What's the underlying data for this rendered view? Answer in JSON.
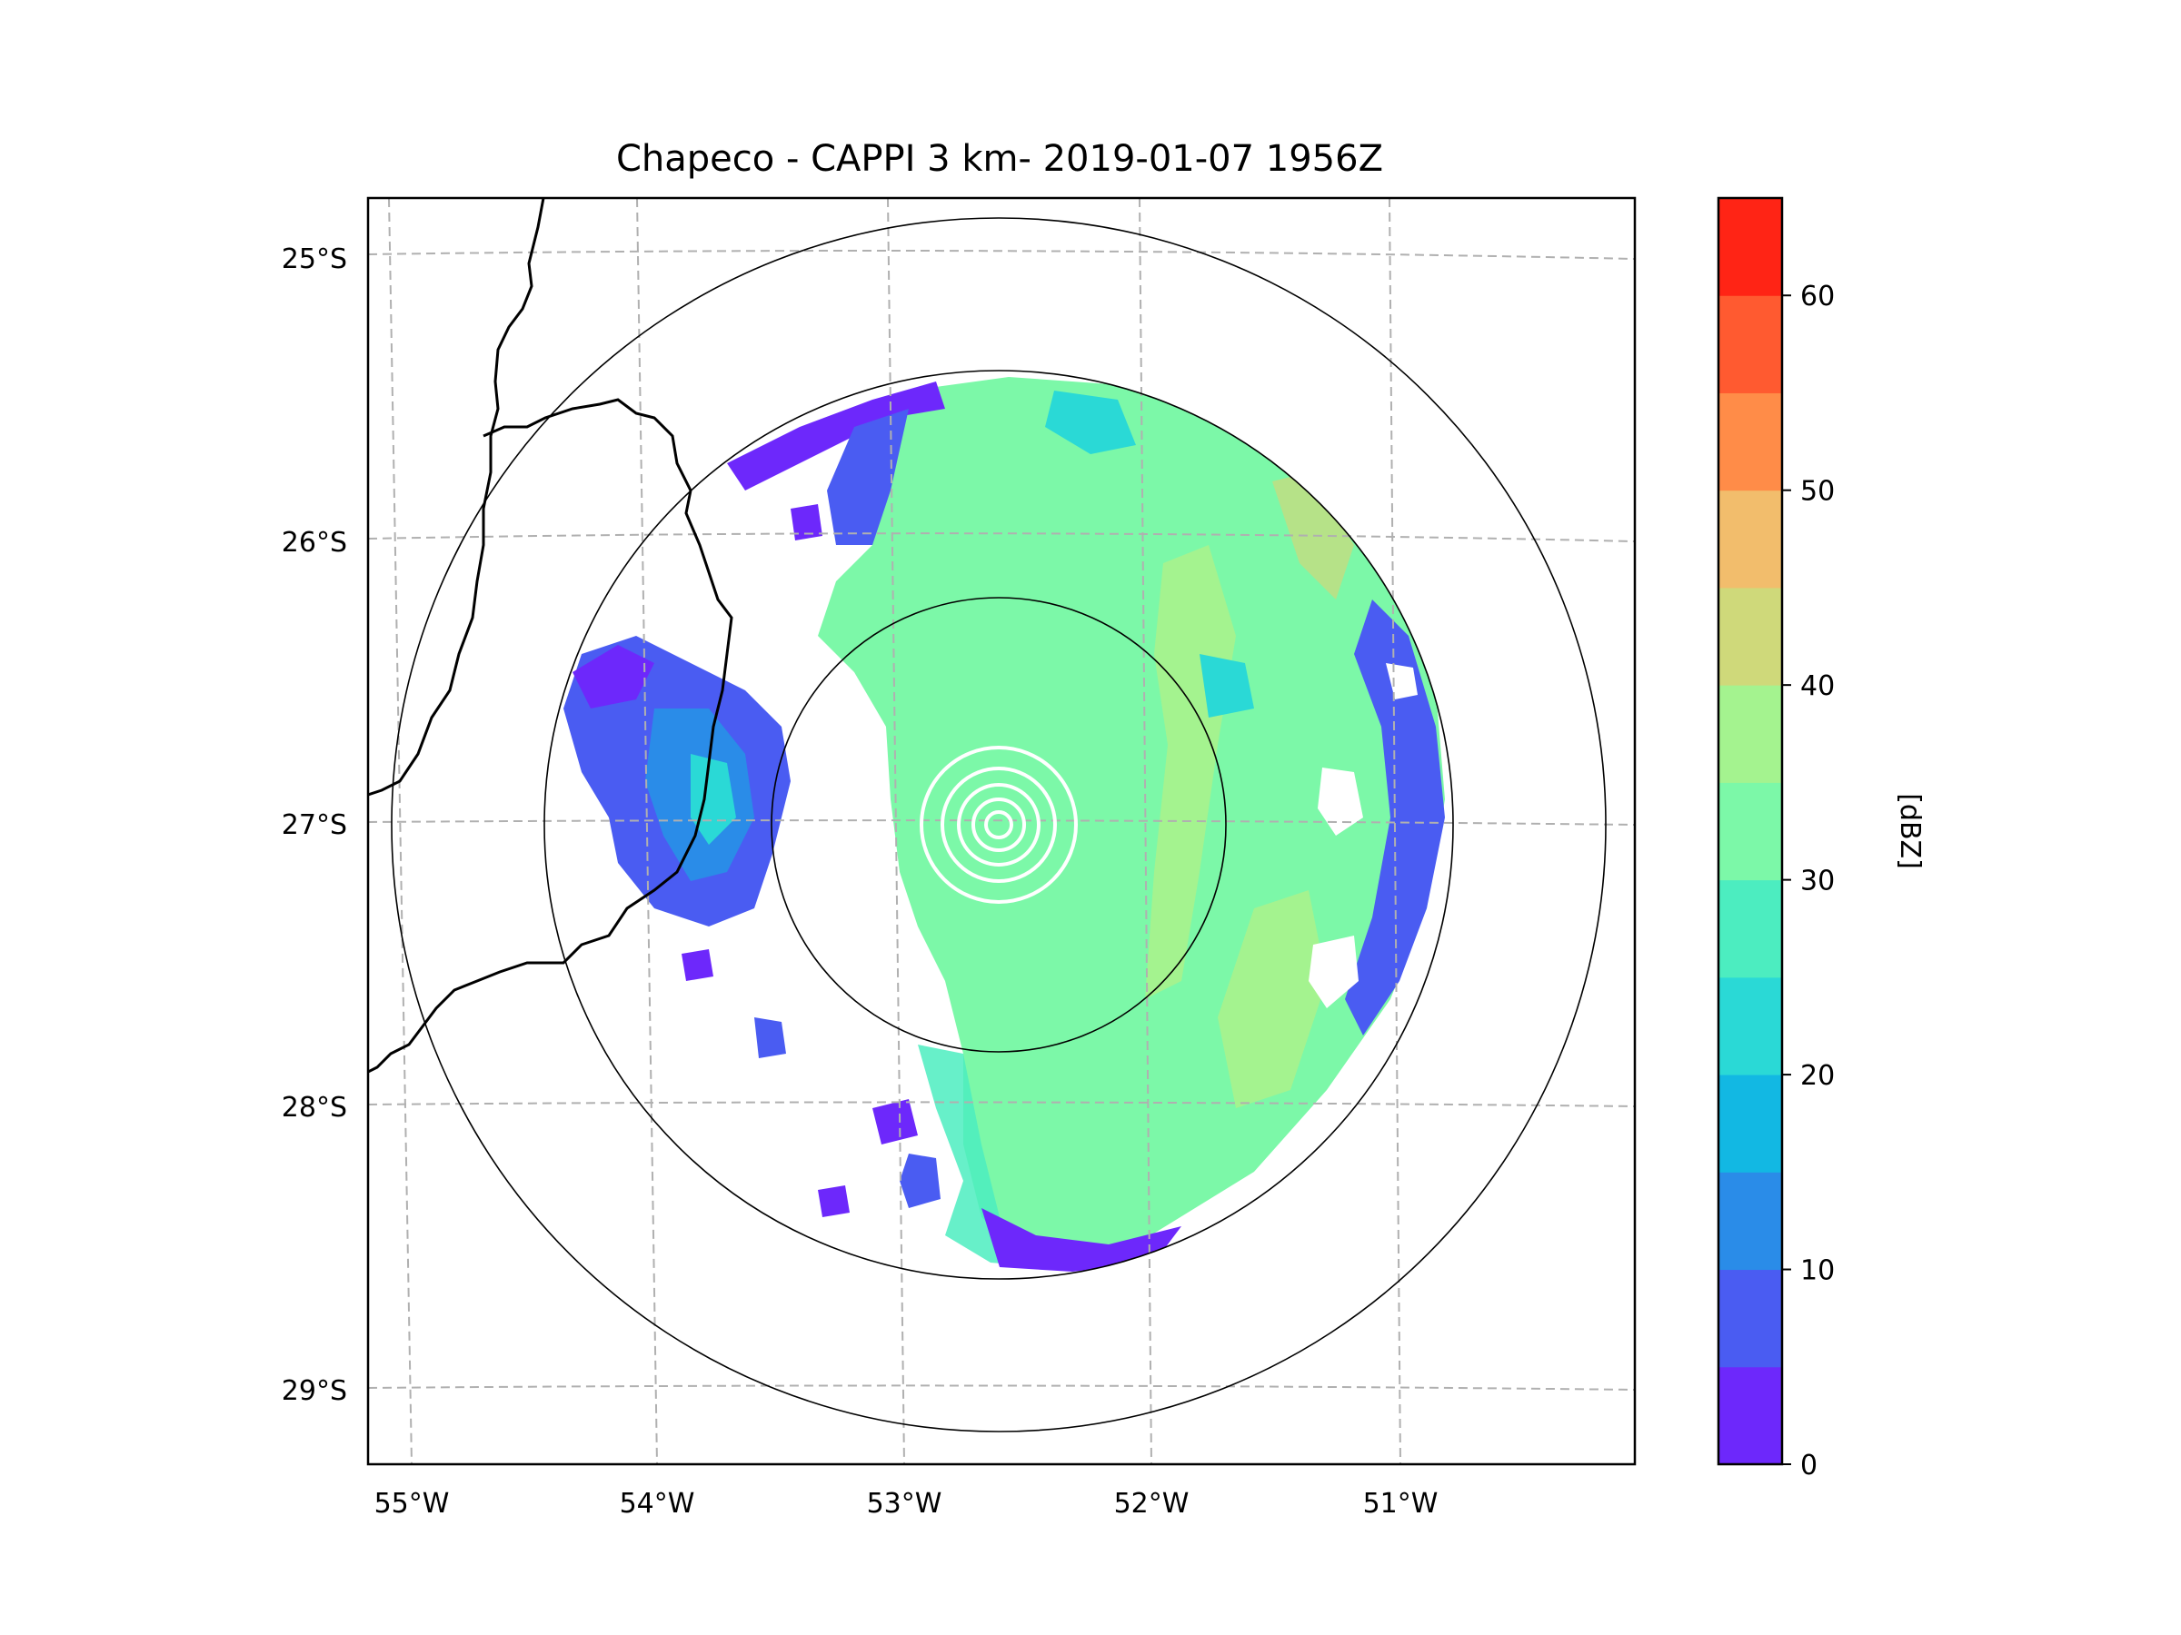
{
  "chart_data": {
    "type": "radar-map",
    "title": "Chapeco - CAPPI 3 km- 2019-01-07 1956Z",
    "map": {
      "lon_range": [
        -55.2,
        -50.05
      ],
      "lat_range": [
        -29.3,
        -24.78
      ],
      "radar_site": {
        "lon": -52.6,
        "lat": -27.03
      },
      "range_rings": [
        "inner",
        "middle",
        "outer"
      ],
      "gridlines": "dashed",
      "lon_ticks": [
        {
          "value": -55,
          "label": "55°W"
        },
        {
          "value": -54,
          "label": "54°W"
        },
        {
          "value": -53,
          "label": "53°W"
        },
        {
          "value": -52,
          "label": "52°W"
        },
        {
          "value": -51,
          "label": "51°W"
        }
      ],
      "lat_ticks": [
        {
          "value": -25,
          "label": "25°S"
        },
        {
          "value": -26,
          "label": "26°S"
        },
        {
          "value": -27,
          "label": "27°S"
        },
        {
          "value": -28,
          "label": "28°S"
        },
        {
          "value": -29,
          "label": "29°S"
        }
      ]
    },
    "colorbar": {
      "label": "[dBZ]",
      "range": [
        0,
        65
      ],
      "tick_labels": [
        {
          "value": 0,
          "label": "0"
        },
        {
          "value": 10,
          "label": "10"
        },
        {
          "value": 20,
          "label": "20"
        },
        {
          "value": 30,
          "label": "30"
        },
        {
          "value": 40,
          "label": "40"
        },
        {
          "value": 50,
          "label": "50"
        },
        {
          "value": 60,
          "label": "60"
        }
      ],
      "levels": [
        {
          "from": 0,
          "to": 5,
          "color": "#6d28fb"
        },
        {
          "from": 5,
          "to": 10,
          "color": "#4a5cf2"
        },
        {
          "from": 10,
          "to": 15,
          "color": "#2a8ce8"
        },
        {
          "from": 15,
          "to": 20,
          "color": "#12b8e3"
        },
        {
          "from": 20,
          "to": 25,
          "color": "#2ad9d6"
        },
        {
          "from": 25,
          "to": 30,
          "color": "#4cedc0"
        },
        {
          "from": 30,
          "to": 35,
          "color": "#7cf8a8"
        },
        {
          "from": 35,
          "to": 40,
          "color": "#a4f38f"
        },
        {
          "from": 40,
          "to": 45,
          "color": "#cfd97a"
        },
        {
          "from": 45,
          "to": 50,
          "color": "#f2bd6c"
        },
        {
          "from": 50,
          "to": 55,
          "color": "#ff8c48"
        },
        {
          "from": 55,
          "to": 60,
          "color": "#ff5a30"
        },
        {
          "from": 60,
          "to": 65,
          "color": "#ff2415"
        }
      ]
    }
  }
}
